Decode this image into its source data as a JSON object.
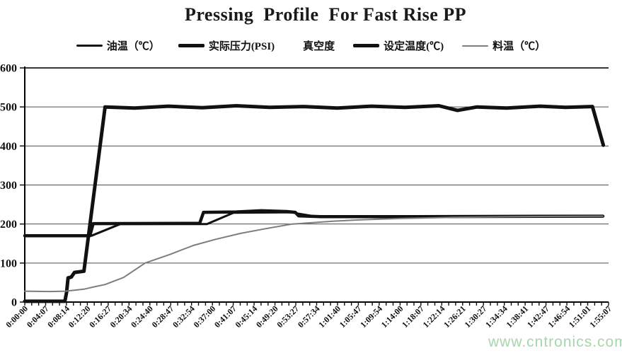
{
  "page": {
    "background": "#ffffff"
  },
  "chart_data": {
    "type": "line",
    "title": "Pressing  Profile  For Fast Rise PP",
    "xlabel": "",
    "ylabel": "",
    "ylim": [
      0,
      600
    ],
    "yticks": [
      0,
      100,
      200,
      300,
      400,
      500,
      600
    ],
    "grid": "horizontal",
    "legend_position": "top",
    "x_tick_labels": [
      "0:00:00",
      "0:04:07",
      "0:08:14",
      "0:12:20",
      "0:16:27",
      "0:20:34",
      "0:24:40",
      "0:28:47",
      "0:32:54",
      "0:37:00",
      "0:41:07",
      "0:45:14",
      "0:49:20",
      "0:53:27",
      "0:57:34",
      "1:01:40",
      "1:05:47",
      "1:09:54",
      "1:14:00",
      "1:18:07",
      "1:22:14",
      "1:26:21",
      "1:30:27",
      "1:34:34",
      "1:38:41",
      "1:42:47",
      "1:46:54",
      "1:51:01",
      "1:55:07"
    ],
    "x_axis_seconds_max": 6907,
    "minor_ticks_per_label_interval": 3,
    "axis_color": "#000000",
    "gridline_color": "#4d4d4d",
    "series": [
      {
        "id": "oil-temp",
        "name": "油温（℃）",
        "color": "#111111",
        "width": 3,
        "visible": true,
        "points": [
          [
            0,
            170
          ],
          [
            790,
            170
          ],
          [
            1130,
            200
          ],
          [
            2155,
            200
          ],
          [
            2470,
            229
          ],
          [
            3160,
            230
          ],
          [
            3230,
            227
          ],
          [
            3450,
            219
          ],
          [
            4300,
            217
          ],
          [
            5300,
            219
          ],
          [
            6840,
            220
          ]
        ]
      },
      {
        "id": "actual-pressure",
        "name": "实际压力(PSI)",
        "color": "#111111",
        "width": 5,
        "visible": true,
        "points": [
          [
            0,
            2
          ],
          [
            475,
            2
          ],
          [
            495,
            25
          ],
          [
            512,
            62
          ],
          [
            550,
            64
          ],
          [
            588,
            76
          ],
          [
            700,
            79
          ],
          [
            950,
            500
          ],
          [
            1300,
            497
          ],
          [
            1700,
            502
          ],
          [
            2100,
            498
          ],
          [
            2500,
            503
          ],
          [
            2900,
            499
          ],
          [
            3300,
            501
          ],
          [
            3700,
            497
          ],
          [
            4100,
            502
          ],
          [
            4500,
            499
          ],
          [
            4900,
            503
          ],
          [
            5120,
            491
          ],
          [
            5350,
            500
          ],
          [
            5700,
            497
          ],
          [
            6100,
            502
          ],
          [
            6400,
            499
          ],
          [
            6716,
            501
          ],
          [
            6845,
            402
          ]
        ]
      },
      {
        "id": "vacuum",
        "name": "真空度",
        "color": "#ffffff",
        "width": 3,
        "visible": false,
        "points": [
          [
            0,
            0
          ],
          [
            6845,
            0
          ]
        ]
      },
      {
        "id": "set-temp",
        "name": "设定温度(℃)",
        "color": "#111111",
        "width": 4.5,
        "visible": true,
        "points": [
          [
            0,
            170
          ],
          [
            770,
            170
          ],
          [
            810,
            201
          ],
          [
            2070,
            202
          ],
          [
            2115,
            230
          ],
          [
            2500,
            231
          ],
          [
            2800,
            234
          ],
          [
            3100,
            232
          ],
          [
            3200,
            230
          ],
          [
            3240,
            221
          ],
          [
            3500,
            219
          ],
          [
            4600,
            219
          ],
          [
            6840,
            220
          ]
        ]
      },
      {
        "id": "material-temp",
        "name": "料温（℃）",
        "color": "#7d7d7d",
        "width": 2,
        "visible": true,
        "points": [
          [
            0,
            28
          ],
          [
            300,
            27
          ],
          [
            480,
            28
          ],
          [
            700,
            33
          ],
          [
            800,
            38
          ],
          [
            950,
            45
          ],
          [
            1170,
            63
          ],
          [
            1424,
            100
          ],
          [
            1717,
            122
          ],
          [
            1993,
            145
          ],
          [
            2261,
            161
          ],
          [
            2554,
            176
          ],
          [
            2847,
            188
          ],
          [
            3165,
            200
          ],
          [
            3642,
            207
          ],
          [
            4000,
            211
          ],
          [
            4440,
            214
          ],
          [
            5040,
            217
          ],
          [
            5800,
            219
          ],
          [
            6840,
            220
          ]
        ]
      }
    ],
    "watermark": {
      "text": "www.cntronics.com",
      "color": "#a6d7ab"
    }
  }
}
